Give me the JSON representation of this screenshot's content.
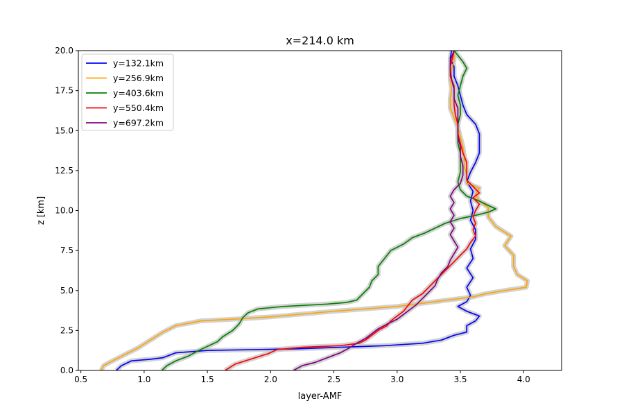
{
  "chart_data": {
    "type": "line",
    "title": "x=214.0 km",
    "xlabel": "layer-AMF",
    "ylabel": "z [km]",
    "xlim": [
      0.48,
      4.3
    ],
    "ylim": [
      0,
      20
    ],
    "xticks": [
      "0.5",
      "1.0",
      "1.5",
      "2.0",
      "2.5",
      "3.0",
      "3.5",
      "4.0"
    ],
    "yticks": [
      "0.0",
      "2.5",
      "5.0",
      "7.5",
      "10.0",
      "12.5",
      "15.0",
      "17.5",
      "20.0"
    ],
    "grid": false,
    "legend_position": "upper-left",
    "band_color": "#c8c8c8",
    "series": [
      {
        "name": "y=132.1km",
        "color": "#0000ff",
        "points": [
          [
            0.78,
            0
          ],
          [
            0.82,
            0.3
          ],
          [
            0.9,
            0.6
          ],
          [
            1.05,
            0.7
          ],
          [
            1.15,
            0.8
          ],
          [
            1.25,
            1.1
          ],
          [
            1.5,
            1.25
          ],
          [
            2.2,
            1.35
          ],
          [
            2.9,
            1.55
          ],
          [
            3.2,
            1.7
          ],
          [
            3.35,
            1.9
          ],
          [
            3.45,
            2.2
          ],
          [
            3.55,
            2.4
          ],
          [
            3.55,
            2.8
          ],
          [
            3.62,
            3.1
          ],
          [
            3.65,
            3.4
          ],
          [
            3.55,
            3.7
          ],
          [
            3.48,
            4.0
          ],
          [
            3.55,
            4.3
          ],
          [
            3.58,
            4.7
          ],
          [
            3.55,
            5.2
          ],
          [
            3.6,
            5.8
          ],
          [
            3.55,
            6.4
          ],
          [
            3.6,
            7.0
          ],
          [
            3.58,
            7.6
          ],
          [
            3.62,
            8.2
          ],
          [
            3.62,
            8.8
          ],
          [
            3.58,
            9.4
          ],
          [
            3.6,
            10.0
          ],
          [
            3.58,
            10.6
          ],
          [
            3.6,
            11.2
          ],
          [
            3.55,
            11.8
          ],
          [
            3.58,
            12.4
          ],
          [
            3.62,
            13.0
          ],
          [
            3.65,
            13.6
          ],
          [
            3.65,
            14.2
          ],
          [
            3.65,
            14.8
          ],
          [
            3.62,
            15.4
          ],
          [
            3.55,
            16.0
          ],
          [
            3.52,
            16.6
          ],
          [
            3.5,
            17.2
          ],
          [
            3.48,
            17.8
          ],
          [
            3.45,
            18.4
          ],
          [
            3.45,
            19.0
          ],
          [
            3.42,
            19.5
          ],
          [
            3.43,
            20.0
          ]
        ]
      },
      {
        "name": "y=256.9km",
        "color": "#ffa500",
        "points": [
          [
            0.66,
            0
          ],
          [
            0.68,
            0.3
          ],
          [
            0.75,
            0.6
          ],
          [
            0.85,
            1.0
          ],
          [
            0.95,
            1.4
          ],
          [
            1.05,
            1.9
          ],
          [
            1.15,
            2.4
          ],
          [
            1.25,
            2.8
          ],
          [
            1.45,
            3.1
          ],
          [
            1.7,
            3.2
          ],
          [
            2.0,
            3.35
          ],
          [
            2.5,
            3.7
          ],
          [
            3.0,
            4.0
          ],
          [
            3.3,
            4.3
          ],
          [
            3.5,
            4.5
          ],
          [
            3.6,
            4.6
          ],
          [
            3.7,
            4.8
          ],
          [
            3.85,
            5.0
          ],
          [
            4.02,
            5.2
          ],
          [
            4.03,
            5.6
          ],
          [
            3.95,
            6.0
          ],
          [
            3.92,
            6.5
          ],
          [
            3.92,
            7.2
          ],
          [
            3.85,
            7.8
          ],
          [
            3.9,
            8.4
          ],
          [
            3.78,
            9.0
          ],
          [
            3.72,
            9.6
          ],
          [
            3.72,
            10.2
          ],
          [
            3.65,
            10.6
          ],
          [
            3.62,
            11.0
          ],
          [
            3.65,
            11.4
          ],
          [
            3.55,
            11.7
          ],
          [
            3.55,
            12.2
          ],
          [
            3.53,
            12.8
          ],
          [
            3.53,
            13.4
          ],
          [
            3.52,
            14.0
          ],
          [
            3.5,
            14.6
          ],
          [
            3.48,
            15.2
          ],
          [
            3.45,
            15.8
          ],
          [
            3.42,
            16.4
          ],
          [
            3.42,
            17.0
          ],
          [
            3.43,
            17.6
          ],
          [
            3.42,
            18.2
          ],
          [
            3.43,
            18.8
          ],
          [
            3.45,
            19.4
          ],
          [
            3.45,
            20.0
          ]
        ]
      },
      {
        "name": "y=403.6km",
        "color": "#008000",
        "points": [
          [
            1.14,
            0
          ],
          [
            1.18,
            0.3
          ],
          [
            1.25,
            0.6
          ],
          [
            1.35,
            0.9
          ],
          [
            1.42,
            1.2
          ],
          [
            1.5,
            1.5
          ],
          [
            1.58,
            1.8
          ],
          [
            1.62,
            2.1
          ],
          [
            1.7,
            2.5
          ],
          [
            1.75,
            2.9
          ],
          [
            1.78,
            3.3
          ],
          [
            1.82,
            3.6
          ],
          [
            1.9,
            3.85
          ],
          [
            2.1,
            4.0
          ],
          [
            2.45,
            4.15
          ],
          [
            2.6,
            4.25
          ],
          [
            2.68,
            4.4
          ],
          [
            2.73,
            4.8
          ],
          [
            2.78,
            5.2
          ],
          [
            2.8,
            5.6
          ],
          [
            2.85,
            6.0
          ],
          [
            2.85,
            6.5
          ],
          [
            2.9,
            7.0
          ],
          [
            2.95,
            7.5
          ],
          [
            3.05,
            7.9
          ],
          [
            3.12,
            8.3
          ],
          [
            3.22,
            8.6
          ],
          [
            3.3,
            8.9
          ],
          [
            3.38,
            9.2
          ],
          [
            3.5,
            9.5
          ],
          [
            3.62,
            9.7
          ],
          [
            3.72,
            9.9
          ],
          [
            3.78,
            10.1
          ],
          [
            3.7,
            10.4
          ],
          [
            3.62,
            10.7
          ],
          [
            3.55,
            10.9
          ],
          [
            3.5,
            11.3
          ],
          [
            3.48,
            11.8
          ],
          [
            3.5,
            12.4
          ],
          [
            3.5,
            13.0
          ],
          [
            3.5,
            13.6
          ],
          [
            3.48,
            14.2
          ],
          [
            3.48,
            14.8
          ],
          [
            3.48,
            15.4
          ],
          [
            3.5,
            16.0
          ],
          [
            3.5,
            16.6
          ],
          [
            3.48,
            17.2
          ],
          [
            3.5,
            17.8
          ],
          [
            3.52,
            18.4
          ],
          [
            3.55,
            18.9
          ],
          [
            3.52,
            19.3
          ],
          [
            3.48,
            19.7
          ],
          [
            3.45,
            20.0
          ]
        ]
      },
      {
        "name": "y=550.4km",
        "color": "#ff0000",
        "points": [
          [
            1.64,
            0
          ],
          [
            1.68,
            0.2
          ],
          [
            1.72,
            0.4
          ],
          [
            1.8,
            0.6
          ],
          [
            1.88,
            0.8
          ],
          [
            1.98,
            1.05
          ],
          [
            2.05,
            1.3
          ],
          [
            2.25,
            1.45
          ],
          [
            2.55,
            1.55
          ],
          [
            2.7,
            1.7
          ],
          [
            2.75,
            1.9
          ],
          [
            2.8,
            2.2
          ],
          [
            2.85,
            2.5
          ],
          [
            2.92,
            2.8
          ],
          [
            2.95,
            3.1
          ],
          [
            3.0,
            3.4
          ],
          [
            3.05,
            3.7
          ],
          [
            3.08,
            4.0
          ],
          [
            3.12,
            4.4
          ],
          [
            3.2,
            4.8
          ],
          [
            3.25,
            5.2
          ],
          [
            3.3,
            5.6
          ],
          [
            3.35,
            6.0
          ],
          [
            3.4,
            6.4
          ],
          [
            3.45,
            6.8
          ],
          [
            3.5,
            7.2
          ],
          [
            3.55,
            7.6
          ],
          [
            3.58,
            8.0
          ],
          [
            3.62,
            8.4
          ],
          [
            3.6,
            8.8
          ],
          [
            3.62,
            9.2
          ],
          [
            3.6,
            9.6
          ],
          [
            3.62,
            10.0
          ],
          [
            3.65,
            10.4
          ],
          [
            3.6,
            10.8
          ],
          [
            3.65,
            11.1
          ],
          [
            3.6,
            11.5
          ],
          [
            3.55,
            11.9
          ],
          [
            3.55,
            12.4
          ],
          [
            3.55,
            13.0
          ],
          [
            3.52,
            13.6
          ],
          [
            3.5,
            14.2
          ],
          [
            3.48,
            14.8
          ],
          [
            3.48,
            15.4
          ],
          [
            3.46,
            16.0
          ],
          [
            3.45,
            16.6
          ],
          [
            3.45,
            17.2
          ],
          [
            3.45,
            17.8
          ],
          [
            3.42,
            18.4
          ],
          [
            3.42,
            19.0
          ],
          [
            3.44,
            19.6
          ],
          [
            3.45,
            20.0
          ]
        ]
      },
      {
        "name": "y=697.2km",
        "color": "#800080",
        "points": [
          [
            2.18,
            0
          ],
          [
            2.25,
            0.3
          ],
          [
            2.35,
            0.5
          ],
          [
            2.45,
            0.8
          ],
          [
            2.55,
            1.1
          ],
          [
            2.62,
            1.4
          ],
          [
            2.68,
            1.7
          ],
          [
            2.75,
            2.0
          ],
          [
            2.8,
            2.3
          ],
          [
            2.85,
            2.6
          ],
          [
            2.92,
            2.9
          ],
          [
            3.0,
            3.2
          ],
          [
            3.05,
            3.5
          ],
          [
            3.1,
            3.8
          ],
          [
            3.15,
            4.1
          ],
          [
            3.2,
            4.5
          ],
          [
            3.25,
            4.9
          ],
          [
            3.3,
            5.3
          ],
          [
            3.32,
            5.7
          ],
          [
            3.35,
            6.1
          ],
          [
            3.4,
            6.5
          ],
          [
            3.42,
            6.9
          ],
          [
            3.45,
            7.3
          ],
          [
            3.48,
            7.7
          ],
          [
            3.45,
            8.1
          ],
          [
            3.42,
            8.5
          ],
          [
            3.45,
            8.9
          ],
          [
            3.42,
            9.3
          ],
          [
            3.45,
            9.7
          ],
          [
            3.42,
            10.1
          ],
          [
            3.45,
            10.5
          ],
          [
            3.42,
            10.9
          ],
          [
            3.45,
            11.3
          ],
          [
            3.5,
            11.7
          ],
          [
            3.52,
            12.2
          ],
          [
            3.52,
            12.8
          ],
          [
            3.5,
            13.4
          ],
          [
            3.5,
            14.0
          ],
          [
            3.48,
            14.6
          ],
          [
            3.48,
            15.2
          ],
          [
            3.48,
            15.8
          ],
          [
            3.48,
            16.4
          ],
          [
            3.45,
            17.0
          ],
          [
            3.45,
            17.6
          ],
          [
            3.43,
            18.2
          ],
          [
            3.42,
            18.8
          ],
          [
            3.42,
            19.4
          ],
          [
            3.45,
            20.0
          ]
        ]
      }
    ]
  }
}
